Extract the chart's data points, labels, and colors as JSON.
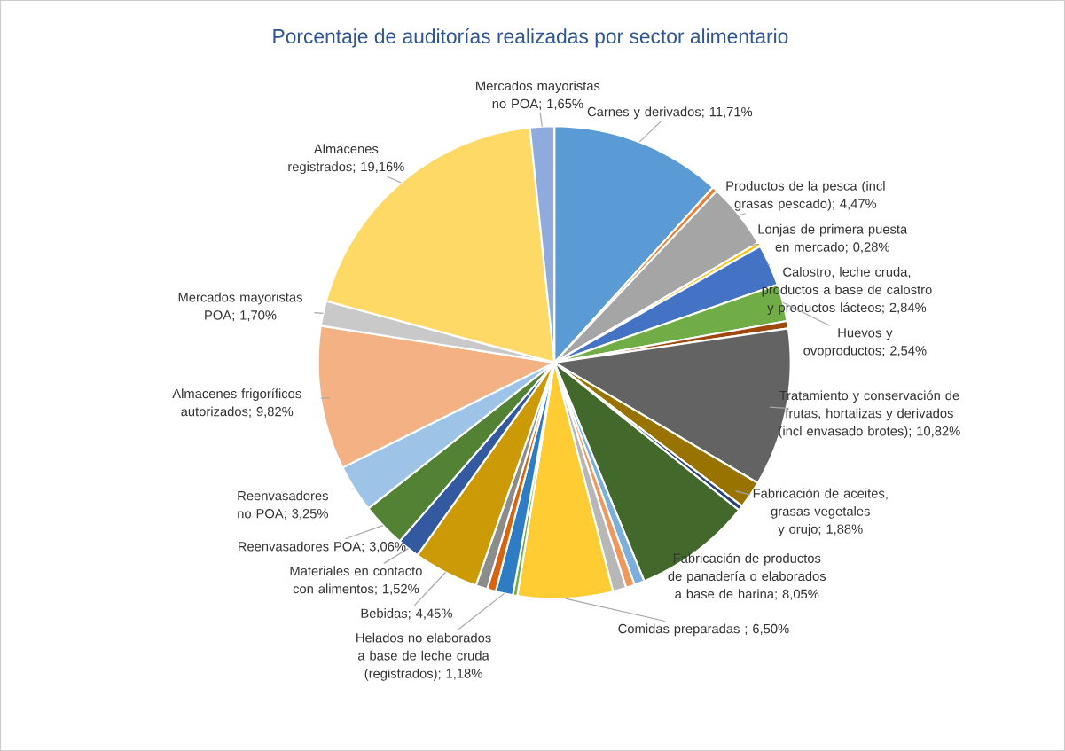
{
  "chart_data": {
    "type": "pie",
    "title": "Porcentaje de auditorías realizadas por sector alimentario",
    "categories": [
      "Carnes y derivados; 11,71%",
      null,
      "Productos de la pesca (incl grasas pescado); 4,47%",
      "Lonjas de primera puesta en mercado; 0,28%",
      "Calostro, leche cruda, productos a base de calostro y productos lácteos; 2,84%",
      "Huevos y ovoproductos; 2,54%",
      null,
      "Tratamiento y conservación de frutas, hortalizas y derivados (incl envasado brotes); 10,82%",
      "Fabricación de aceites, grasas vegetales y orujo; 1,88%",
      null,
      "Fabricación de productos de panadería o elaborados a base de harina; 8,05%",
      null,
      null,
      null,
      "Comidas preparadas ; 6,50%",
      null,
      "Helados no elaborados a base de leche cruda (registrados); 1,18%",
      null,
      null,
      "Bebidas; 4,45%",
      "Materiales en contacto con alimentos; 1,52%",
      "Reenvasadores POA; 3,06%",
      "Reenvasadores no POA; 3,25%",
      "Almacenes frigoríficos autorizados; 9,82%",
      "Mercados mayoristas POA; 1,70%",
      "Almacenes registrados; 19,16%",
      "Mercados mayoristas no POA; 1,65%"
    ],
    "values": [
      11.71,
      0.35,
      4.47,
      0.28,
      2.84,
      2.54,
      0.5,
      10.82,
      1.88,
      0.35,
      8.05,
      0.7,
      0.6,
      0.92,
      6.5,
      0.3,
      1.18,
      0.6,
      0.8,
      4.45,
      1.52,
      3.06,
      3.25,
      9.82,
      1.7,
      19.16,
      1.65
    ],
    "colors": [
      "#5b9bd5",
      "#ed7d31",
      "#a5a5a5",
      "#ffc000",
      "#4472c4",
      "#70ad47",
      "#9e480e",
      "#636363",
      "#997300",
      "#264478",
      "#43682b",
      "#7cafdd",
      "#f1975a",
      "#b7b7b7",
      "#ffcd33",
      "#70ad47",
      "#2e7dc4",
      "#d9640f",
      "#8c8c8c",
      "#cc9a06",
      "#335aa1",
      "#548235",
      "#9dc3e6",
      "#f4b183",
      "#c9c9c9",
      "#ffd966",
      "#8faadc"
    ],
    "legend": false
  }
}
